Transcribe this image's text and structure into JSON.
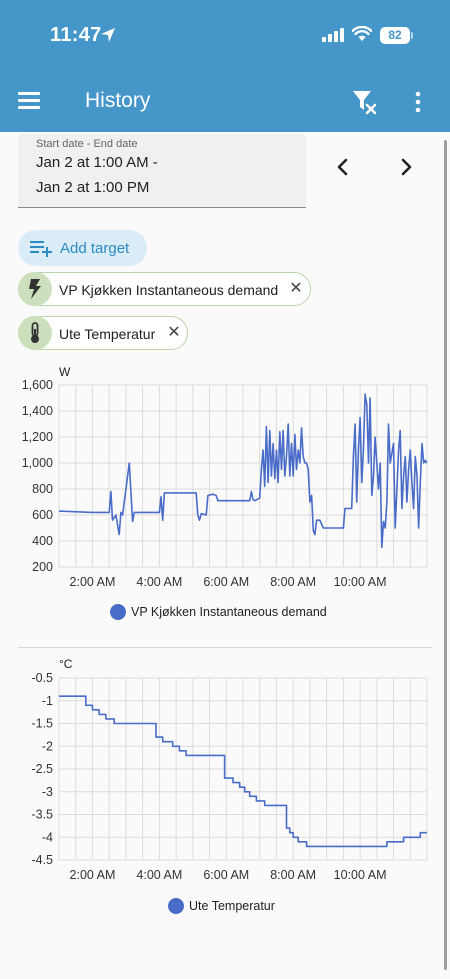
{
  "status_bar": {
    "time": "11:47",
    "battery": "82"
  },
  "header": {
    "title": "History"
  },
  "date_range": {
    "label": "Start date - End date",
    "start": "Jan 2 at 1:00 AM -",
    "end": "Jan 2 at 1:00 PM"
  },
  "add_target": {
    "label": "Add target"
  },
  "targets": [
    {
      "label": "VP Kjøkken Instantaneous demand",
      "icon": "flash-icon"
    },
    {
      "label": "Ute Temperatur",
      "icon": "thermometer-icon"
    }
  ],
  "colors": {
    "accent": "#4596c9",
    "line": "#4a6cc9",
    "chip_bg": "#cde0bd"
  },
  "chart_data": [
    {
      "type": "line",
      "unit": "W",
      "ylim": [
        200,
        1600
      ],
      "yticks": [
        "1,600",
        "1,400",
        "1,200",
        "1,000",
        "800",
        "600",
        "400",
        "200"
      ],
      "xlim": [
        1.0,
        12.0
      ],
      "xticks": [
        "2:00 AM",
        "4:00 AM",
        "6:00 AM",
        "8:00 AM",
        "10:00 AM"
      ],
      "grid": true,
      "legend_position": "bottom",
      "series": [
        {
          "name": "VP Kjøkken Instantaneous demand",
          "color": "#4a6cc9",
          "points": [
            [
              1.0,
              630
            ],
            [
              2.0,
              620
            ],
            [
              2.5,
              620
            ],
            [
              2.55,
              780
            ],
            [
              2.6,
              560
            ],
            [
              2.7,
              600
            ],
            [
              2.8,
              450
            ],
            [
              2.85,
              620
            ],
            [
              2.9,
              600
            ],
            [
              3.05,
              900
            ],
            [
              3.1,
              1000
            ],
            [
              3.15,
              780
            ],
            [
              3.2,
              550
            ],
            [
              3.25,
              620
            ],
            [
              3.6,
              620
            ],
            [
              4.0,
              620
            ],
            [
              4.05,
              740
            ],
            [
              4.1,
              560
            ],
            [
              4.15,
              770
            ],
            [
              4.5,
              770
            ],
            [
              5.1,
              770
            ],
            [
              5.15,
              600
            ],
            [
              5.2,
              560
            ],
            [
              5.25,
              610
            ],
            [
              5.4,
              600
            ],
            [
              5.45,
              750
            ],
            [
              5.6,
              760
            ],
            [
              5.7,
              750
            ],
            [
              5.75,
              710
            ],
            [
              6.0,
              710
            ],
            [
              6.3,
              710
            ],
            [
              6.7,
              710
            ],
            [
              6.75,
              780
            ],
            [
              6.8,
              720
            ],
            [
              6.85,
              710
            ],
            [
              7.0,
              730
            ],
            [
              7.05,
              950
            ],
            [
              7.1,
              1100
            ],
            [
              7.15,
              820
            ],
            [
              7.2,
              1280
            ],
            [
              7.25,
              850
            ],
            [
              7.3,
              1250
            ],
            [
              7.35,
              900
            ],
            [
              7.4,
              1150
            ],
            [
              7.45,
              880
            ],
            [
              7.5,
              1100
            ],
            [
              7.55,
              850
            ],
            [
              7.6,
              1240
            ],
            [
              7.65,
              950
            ],
            [
              7.7,
              1250
            ],
            [
              7.75,
              900
            ],
            [
              7.8,
              1050
            ],
            [
              7.85,
              1300
            ],
            [
              7.9,
              900
            ],
            [
              7.95,
              1150
            ],
            [
              8.0,
              900
            ],
            [
              8.05,
              1220
            ],
            [
              8.1,
              950
            ],
            [
              8.15,
              1100
            ],
            [
              8.2,
              1000
            ],
            [
              8.25,
              1270
            ],
            [
              8.3,
              1050
            ],
            [
              8.35,
              1000
            ],
            [
              8.4,
              1000
            ],
            [
              8.45,
              950
            ],
            [
              8.5,
              700
            ],
            [
              8.55,
              750
            ],
            [
              8.6,
              480
            ],
            [
              8.65,
              450
            ],
            [
              8.7,
              560
            ],
            [
              8.8,
              560
            ],
            [
              8.9,
              500
            ],
            [
              9.5,
              500
            ],
            [
              9.55,
              650
            ],
            [
              9.6,
              650
            ],
            [
              9.75,
              650
            ],
            [
              9.8,
              1050
            ],
            [
              9.85,
              1300
            ],
            [
              9.9,
              700
            ],
            [
              9.95,
              1100
            ],
            [
              10.0,
              1350
            ],
            [
              10.05,
              850
            ],
            [
              10.1,
              1100
            ],
            [
              10.15,
              1530
            ],
            [
              10.2,
              1450
            ],
            [
              10.25,
              1000
            ],
            [
              10.3,
              1500
            ],
            [
              10.35,
              750
            ],
            [
              10.4,
              900
            ],
            [
              10.45,
              1200
            ],
            [
              10.5,
              1000
            ],
            [
              10.55,
              800
            ],
            [
              10.6,
              1000
            ],
            [
              10.65,
              350
            ],
            [
              10.7,
              550
            ],
            [
              10.75,
              500
            ],
            [
              10.8,
              700
            ],
            [
              10.85,
              1300
            ],
            [
              10.9,
              1000
            ],
            [
              11.0,
              1150
            ],
            [
              11.05,
              500
            ],
            [
              11.1,
              800
            ],
            [
              11.15,
              1100
            ],
            [
              11.2,
              1250
            ],
            [
              11.25,
              650
            ],
            [
              11.3,
              900
            ],
            [
              11.35,
              1050
            ],
            [
              11.4,
              700
            ],
            [
              11.45,
              950
            ],
            [
              11.5,
              1100
            ],
            [
              11.55,
              850
            ],
            [
              11.6,
              650
            ],
            [
              11.65,
              1050
            ],
            [
              11.7,
              900
            ],
            [
              11.75,
              500
            ],
            [
              11.8,
              850
            ],
            [
              11.85,
              1150
            ],
            [
              11.9,
              1000
            ],
            [
              11.95,
              1020
            ],
            [
              12.0,
              1000
            ]
          ]
        }
      ]
    },
    {
      "type": "line",
      "unit": "°C",
      "ylim": [
        -4.5,
        -0.5
      ],
      "yticks": [
        "-0.5",
        "-1",
        "-1.5",
        "-2",
        "-2.5",
        "-3",
        "-3.5",
        "-4",
        "-4.5"
      ],
      "xlim": [
        1.0,
        12.0
      ],
      "xticks": [
        "2:00 AM",
        "4:00 AM",
        "6:00 AM",
        "8:00 AM",
        "10:00 AM"
      ],
      "grid": true,
      "legend_position": "bottom",
      "series": [
        {
          "name": "Ute Temperatur",
          "color": "#4a6cc9",
          "points": [
            [
              1.0,
              -0.9
            ],
            [
              1.8,
              -0.9
            ],
            [
              1.8,
              -1.1
            ],
            [
              2.0,
              -1.1
            ],
            [
              2.0,
              -1.2
            ],
            [
              2.2,
              -1.2
            ],
            [
              2.2,
              -1.3
            ],
            [
              2.4,
              -1.3
            ],
            [
              2.4,
              -1.4
            ],
            [
              2.65,
              -1.4
            ],
            [
              2.65,
              -1.5
            ],
            [
              3.0,
              -1.5
            ],
            [
              3.9,
              -1.5
            ],
            [
              3.9,
              -1.8
            ],
            [
              4.1,
              -1.8
            ],
            [
              4.1,
              -1.9
            ],
            [
              4.4,
              -1.9
            ],
            [
              4.4,
              -2.0
            ],
            [
              4.6,
              -2.0
            ],
            [
              4.6,
              -2.1
            ],
            [
              4.8,
              -2.1
            ],
            [
              4.8,
              -2.2
            ],
            [
              5.5,
              -2.2
            ],
            [
              5.95,
              -2.2
            ],
            [
              5.95,
              -2.7
            ],
            [
              6.2,
              -2.7
            ],
            [
              6.2,
              -2.8
            ],
            [
              6.4,
              -2.8
            ],
            [
              6.4,
              -2.9
            ],
            [
              6.55,
              -2.9
            ],
            [
              6.55,
              -3.0
            ],
            [
              6.7,
              -3.0
            ],
            [
              6.7,
              -3.1
            ],
            [
              6.9,
              -3.1
            ],
            [
              6.9,
              -3.2
            ],
            [
              7.15,
              -3.2
            ],
            [
              7.15,
              -3.3
            ],
            [
              7.8,
              -3.3
            ],
            [
              7.8,
              -3.8
            ],
            [
              7.9,
              -3.8
            ],
            [
              7.9,
              -3.9
            ],
            [
              8.0,
              -3.9
            ],
            [
              8.0,
              -4.0
            ],
            [
              8.15,
              -4.0
            ],
            [
              8.15,
              -4.1
            ],
            [
              8.4,
              -4.1
            ],
            [
              8.4,
              -4.2
            ],
            [
              9.0,
              -4.2
            ],
            [
              10.5,
              -4.2
            ],
            [
              10.8,
              -4.2
            ],
            [
              10.8,
              -4.1
            ],
            [
              11.3,
              -4.1
            ],
            [
              11.3,
              -4.0
            ],
            [
              11.8,
              -4.0
            ],
            [
              11.8,
              -3.9
            ],
            [
              12.0,
              -3.9
            ]
          ]
        }
      ]
    }
  ]
}
